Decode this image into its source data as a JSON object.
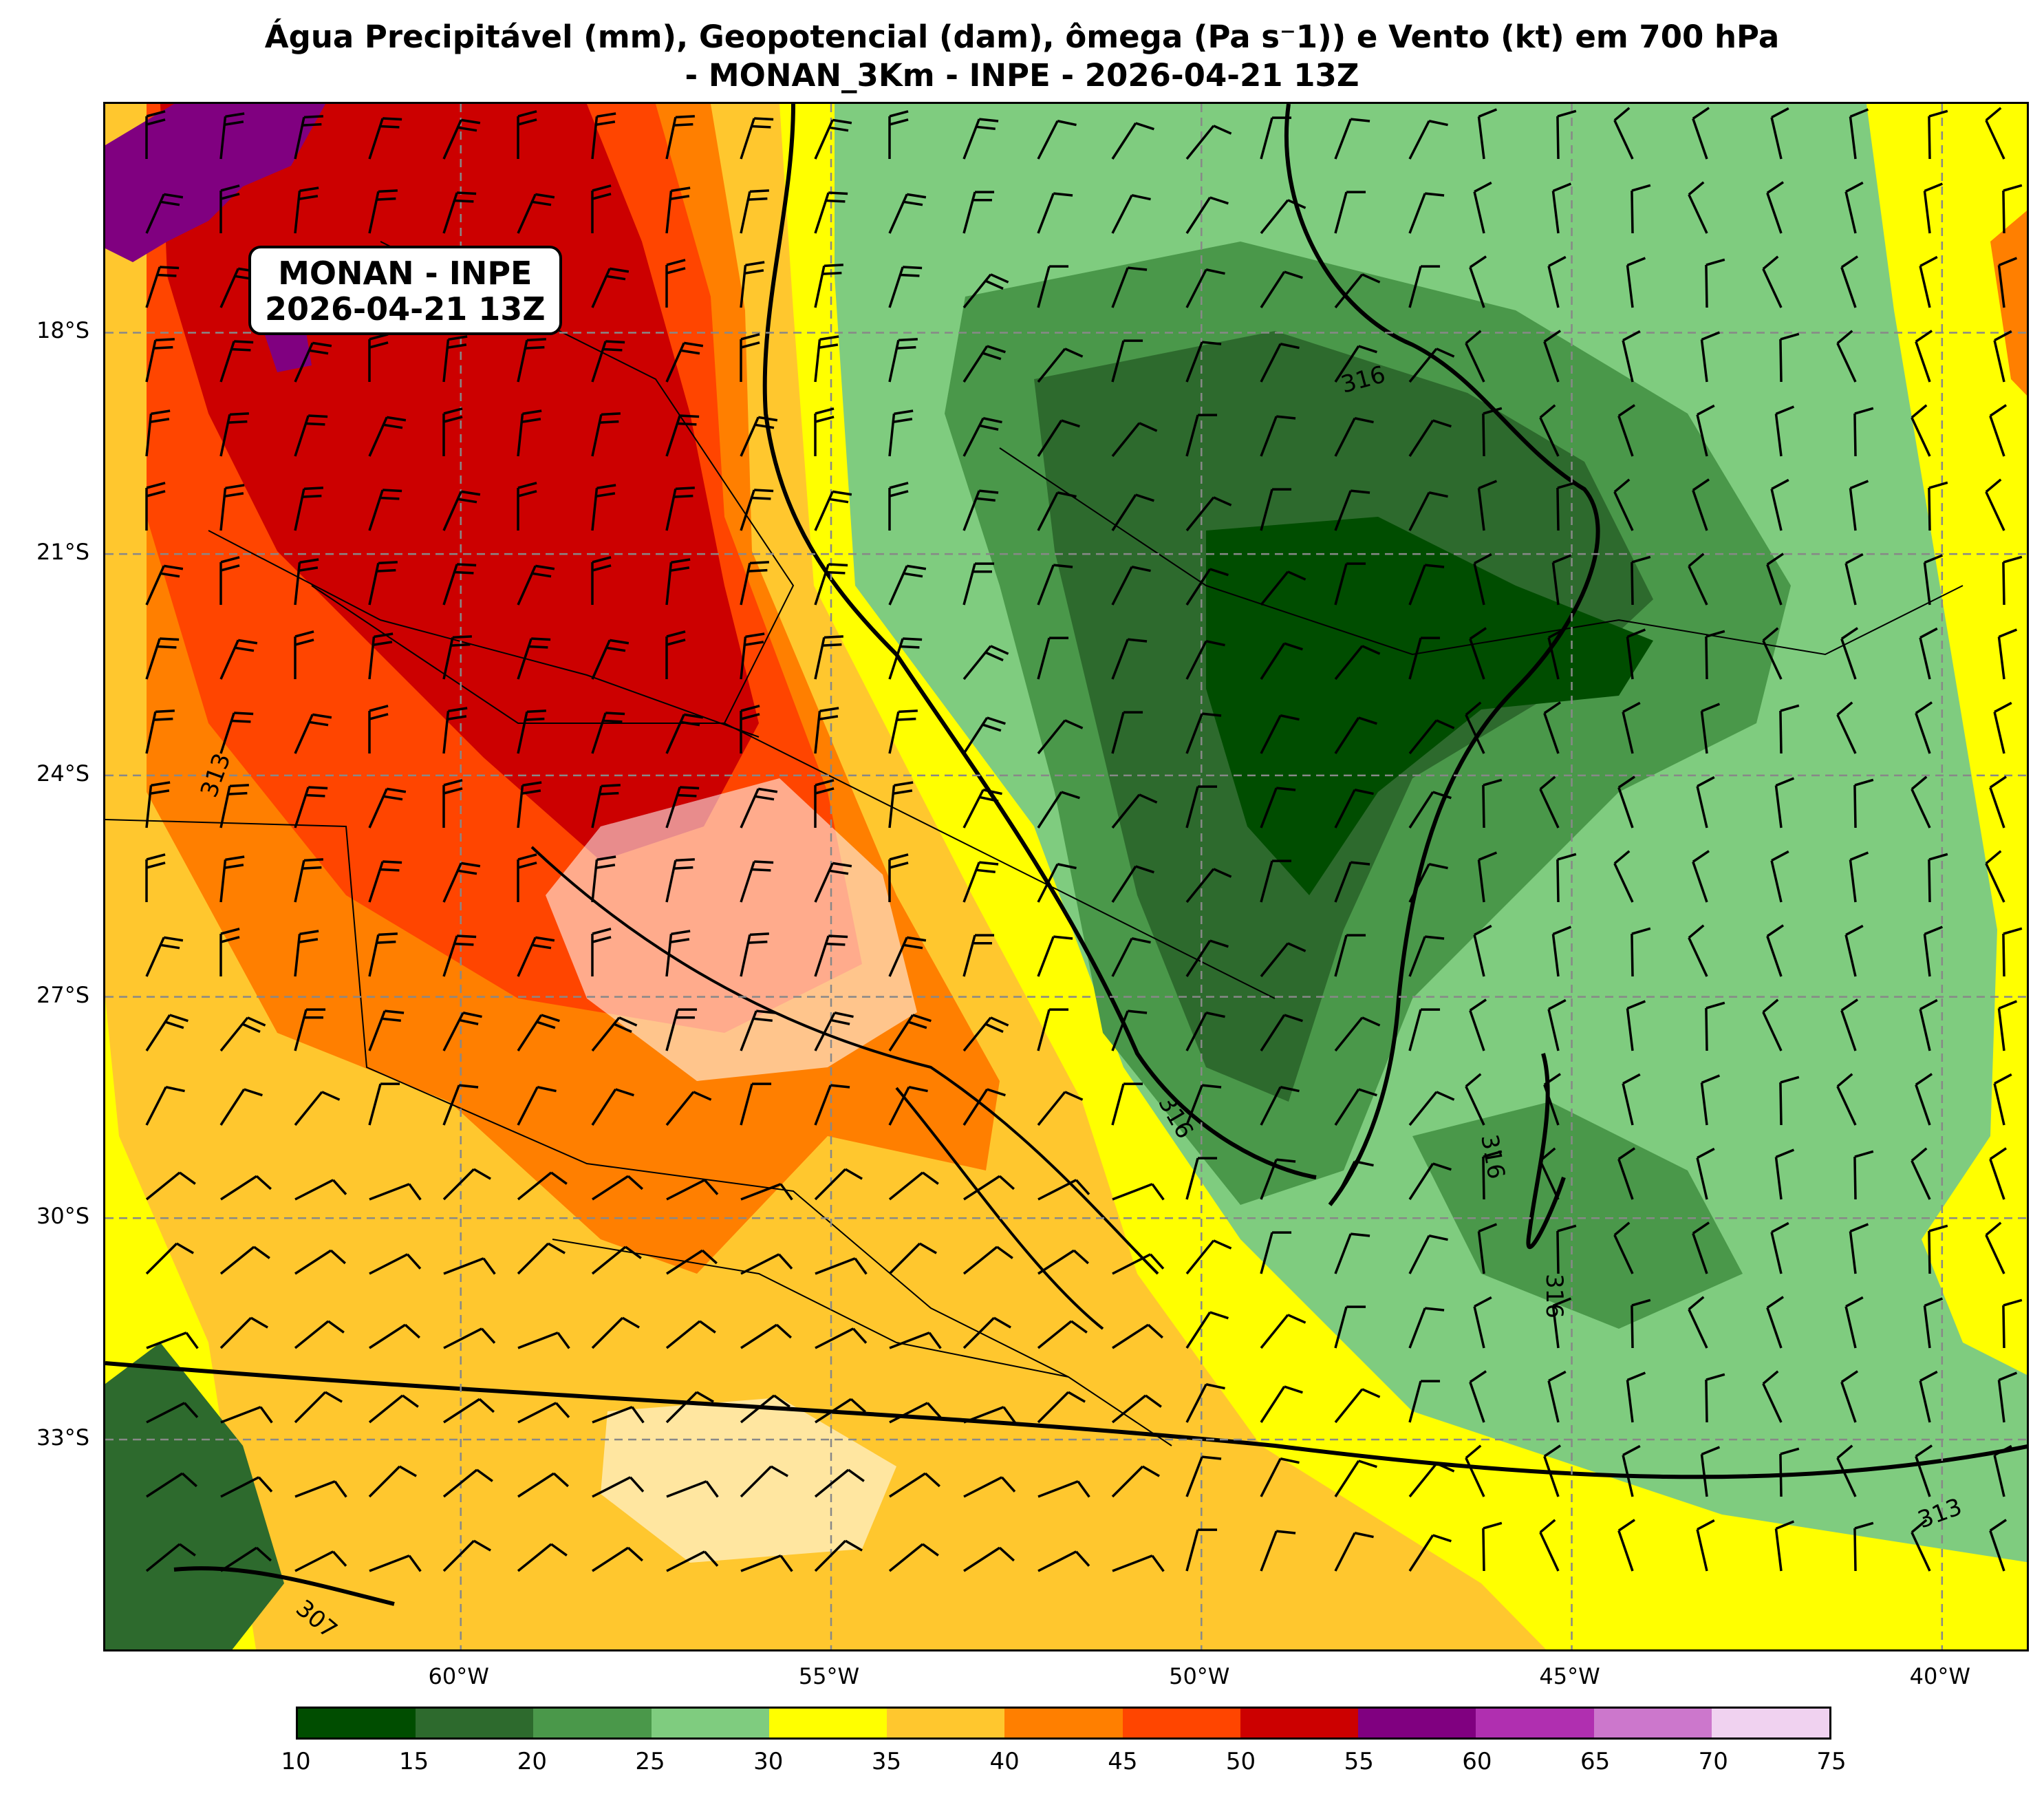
{
  "title": {
    "line1": "Água Precipitável (mm), Geopotencial (dam), ômega (Pa s⁻1)) e Vento (kt) em 700 hPa",
    "line2": "- MONAN_3Km - INPE - 2026-04-21 13Z"
  },
  "info_box": {
    "line1": "MONAN - INPE",
    "line2": "2026-04-21 13Z"
  },
  "map": {
    "lon_range": [
      -64.8,
      -38.8
    ],
    "lat_range": [
      -35.9,
      -14.9
    ],
    "lat_labels": [
      "18°S",
      "21°S",
      "24°S",
      "27°S",
      "30°S",
      "33°S"
    ],
    "lat_values": [
      -18,
      -21,
      -24,
      -27,
      -30,
      -33
    ],
    "lon_labels": [
      "60°W",
      "55°W",
      "50°W",
      "45°W",
      "40°W"
    ],
    "lon_values": [
      -60,
      -55,
      -50,
      -45,
      -40
    ],
    "contour_labels": [
      "316",
      "316",
      "316",
      "316",
      "313",
      "313",
      "307"
    ],
    "grid_color": "#888888"
  },
  "colorbar": {
    "ticks": [
      "10",
      "15",
      "20",
      "25",
      "30",
      "35",
      "40",
      "45",
      "50",
      "55",
      "60",
      "65",
      "70",
      "75"
    ],
    "colors": [
      "#004d00",
      "#2d6a2d",
      "#4a984a",
      "#7fcc7f",
      "#ffff00",
      "#ffc72e",
      "#ff7f00",
      "#ff4500",
      "#cc0000",
      "#800080",
      "#b02fb0",
      "#cc77cc",
      "#f0d2f0"
    ]
  }
}
